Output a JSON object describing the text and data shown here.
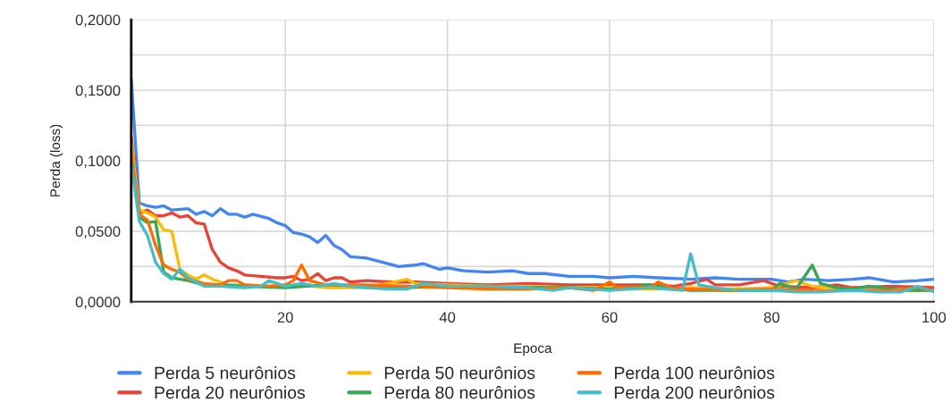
{
  "chart_data": {
    "type": "line",
    "xlabel": "Epoca",
    "ylabel": "Perda (loss)",
    "xlim": [
      1,
      100
    ],
    "xticks": [
      20,
      40,
      60,
      80,
      100
    ],
    "ylim": [
      0,
      0.2
    ],
    "yticks": [
      {
        "value": 0,
        "label": "0,0000"
      },
      {
        "value": 0.025,
        "label": null
      },
      {
        "value": 0.05,
        "label": "0,0500"
      },
      {
        "value": 0.075,
        "label": null
      },
      {
        "value": 0.1,
        "label": "0,1000"
      },
      {
        "value": 0.125,
        "label": null
      },
      {
        "value": 0.15,
        "label": "0,1500"
      },
      {
        "value": 0.175,
        "label": null
      },
      {
        "value": 0.2,
        "label": "0,2000"
      }
    ],
    "grid": true,
    "legend": "bottom",
    "marker": "none",
    "line_style": "solid",
    "series": [
      {
        "name": "Perda 5 neurônios",
        "color": "#4285f4",
        "x": [
          1,
          2,
          3,
          4,
          5,
          6,
          8,
          9,
          10,
          11,
          12,
          13,
          14,
          15,
          16,
          18,
          19,
          20,
          21,
          22,
          23,
          24,
          25,
          26,
          27,
          28,
          30,
          32,
          34,
          36,
          37,
          39,
          40,
          42,
          45,
          48,
          50,
          52,
          55,
          58,
          60,
          63,
          66,
          70,
          73,
          76,
          80,
          82,
          84,
          87,
          90,
          92,
          95,
          98,
          100
        ],
        "values": [
          0.158,
          0.07,
          0.068,
          0.067,
          0.068,
          0.065,
          0.066,
          0.062,
          0.064,
          0.061,
          0.066,
          0.062,
          0.062,
          0.06,
          0.062,
          0.059,
          0.056,
          0.054,
          0.049,
          0.048,
          0.046,
          0.042,
          0.047,
          0.04,
          0.037,
          0.032,
          0.031,
          0.028,
          0.025,
          0.026,
          0.027,
          0.023,
          0.024,
          0.022,
          0.021,
          0.022,
          0.02,
          0.02,
          0.018,
          0.018,
          0.017,
          0.018,
          0.017,
          0.016,
          0.017,
          0.016,
          0.016,
          0.014,
          0.016,
          0.015,
          0.016,
          0.017,
          0.014,
          0.015,
          0.016
        ]
      },
      {
        "name": "Perda 20 neurônios",
        "color": "#ea4335",
        "x": [
          1,
          2,
          3,
          4,
          5,
          6,
          7,
          8,
          9,
          10,
          11,
          12,
          13,
          14,
          15,
          17,
          19,
          20,
          21,
          22,
          23,
          24,
          25,
          26,
          27,
          28,
          30,
          33,
          36,
          40,
          45,
          50,
          55,
          60,
          65,
          68,
          70,
          72,
          73,
          76,
          79,
          81,
          85,
          88,
          90,
          95,
          100
        ],
        "values": [
          0.117,
          0.063,
          0.065,
          0.061,
          0.061,
          0.063,
          0.06,
          0.061,
          0.056,
          0.055,
          0.037,
          0.028,
          0.024,
          0.022,
          0.019,
          0.018,
          0.017,
          0.017,
          0.018,
          0.015,
          0.016,
          0.02,
          0.015,
          0.017,
          0.017,
          0.014,
          0.015,
          0.014,
          0.014,
          0.013,
          0.012,
          0.013,
          0.012,
          0.012,
          0.012,
          0.011,
          0.013,
          0.016,
          0.012,
          0.012,
          0.015,
          0.011,
          0.01,
          0.012,
          0.01,
          0.011,
          0.01
        ]
      },
      {
        "name": "Perda 50 neurônios",
        "color": "#fbbc04",
        "x": [
          1,
          2,
          3,
          4,
          5,
          6,
          7,
          8,
          9,
          10,
          11,
          12,
          13,
          15,
          17,
          20,
          22,
          25,
          30,
          35,
          36,
          40,
          45,
          50,
          55,
          60,
          65,
          70,
          75,
          80,
          83,
          85,
          90,
          95,
          100
        ],
        "values": [
          0.112,
          0.065,
          0.063,
          0.06,
          0.051,
          0.05,
          0.023,
          0.019,
          0.016,
          0.019,
          0.016,
          0.014,
          0.012,
          0.012,
          0.011,
          0.011,
          0.012,
          0.01,
          0.01,
          0.016,
          0.013,
          0.012,
          0.011,
          0.011,
          0.01,
          0.01,
          0.009,
          0.01,
          0.009,
          0.01,
          0.015,
          0.011,
          0.009,
          0.008,
          0.008
        ]
      },
      {
        "name": "Perda 80 neurônios",
        "color": "#34a853",
        "x": [
          1,
          2,
          3,
          4,
          5,
          6,
          8,
          10,
          12,
          15,
          20,
          25,
          30,
          35,
          40,
          45,
          50,
          55,
          60,
          65,
          70,
          75,
          80,
          81,
          83,
          85,
          86,
          88,
          90,
          92,
          95,
          97,
          100
        ],
        "values": [
          0.105,
          0.06,
          0.056,
          0.057,
          0.021,
          0.017,
          0.015,
          0.012,
          0.012,
          0.011,
          0.01,
          0.012,
          0.011,
          0.01,
          0.011,
          null,
          0.01,
          0.01,
          0.009,
          0.012,
          0.008,
          0.008,
          0.008,
          0.013,
          0.009,
          0.026,
          0.013,
          0.01,
          0.009,
          0.011,
          0.009,
          0.008,
          0.008
        ]
      },
      {
        "name": "Perda 100 neurônios",
        "color": "#ff6d01",
        "x": [
          1,
          2,
          3,
          4,
          5,
          6,
          7,
          8,
          10,
          12,
          13,
          14,
          15,
          18,
          20,
          21,
          22,
          23,
          25,
          30,
          35,
          40,
          45,
          50,
          55,
          58,
          60,
          61,
          65,
          66,
          68,
          70,
          75,
          80,
          85,
          90,
          95,
          98,
          100
        ],
        "values": [
          0.105,
          0.062,
          0.058,
          0.04,
          0.026,
          0.023,
          0.021,
          0.016,
          0.013,
          0.012,
          0.015,
          0.015,
          0.012,
          0.011,
          0.012,
          0.015,
          0.026,
          0.015,
          0.012,
          0.012,
          0.011,
          0.01,
          0.009,
          0.009,
          0.01,
          0.008,
          0.014,
          0.01,
          0.01,
          0.014,
          0.009,
          0.009,
          0.008,
          0.009,
          0.008,
          0.008,
          0.008,
          0.01,
          0.008
        ]
      },
      {
        "name": "Perda 200 neurônios",
        "color": "#46bdc6",
        "x": [
          1,
          2,
          3,
          4,
          5,
          6,
          7,
          8,
          9,
          10,
          12,
          15,
          17,
          18,
          20,
          22,
          24,
          26,
          28,
          30,
          33,
          35,
          37,
          40,
          45,
          50,
          53,
          55,
          60,
          65,
          69,
          70,
          71,
          73,
          76,
          80,
          83,
          86,
          90,
          93,
          96,
          98,
          100
        ],
        "values": [
          0.098,
          0.057,
          0.047,
          0.028,
          0.02,
          0.016,
          0.023,
          0.017,
          0.014,
          0.011,
          0.011,
          0.01,
          0.011,
          0.015,
          0.011,
          0.013,
          0.011,
          0.013,
          0.011,
          0.01,
          0.009,
          0.009,
          0.013,
          0.011,
          0.011,
          0.01,
          0.008,
          0.01,
          0.008,
          0.01,
          0.008,
          0.034,
          0.012,
          0.01,
          0.008,
          0.008,
          0.007,
          0.007,
          0.008,
          0.007,
          0.007,
          0.011,
          0.007
        ]
      }
    ]
  }
}
